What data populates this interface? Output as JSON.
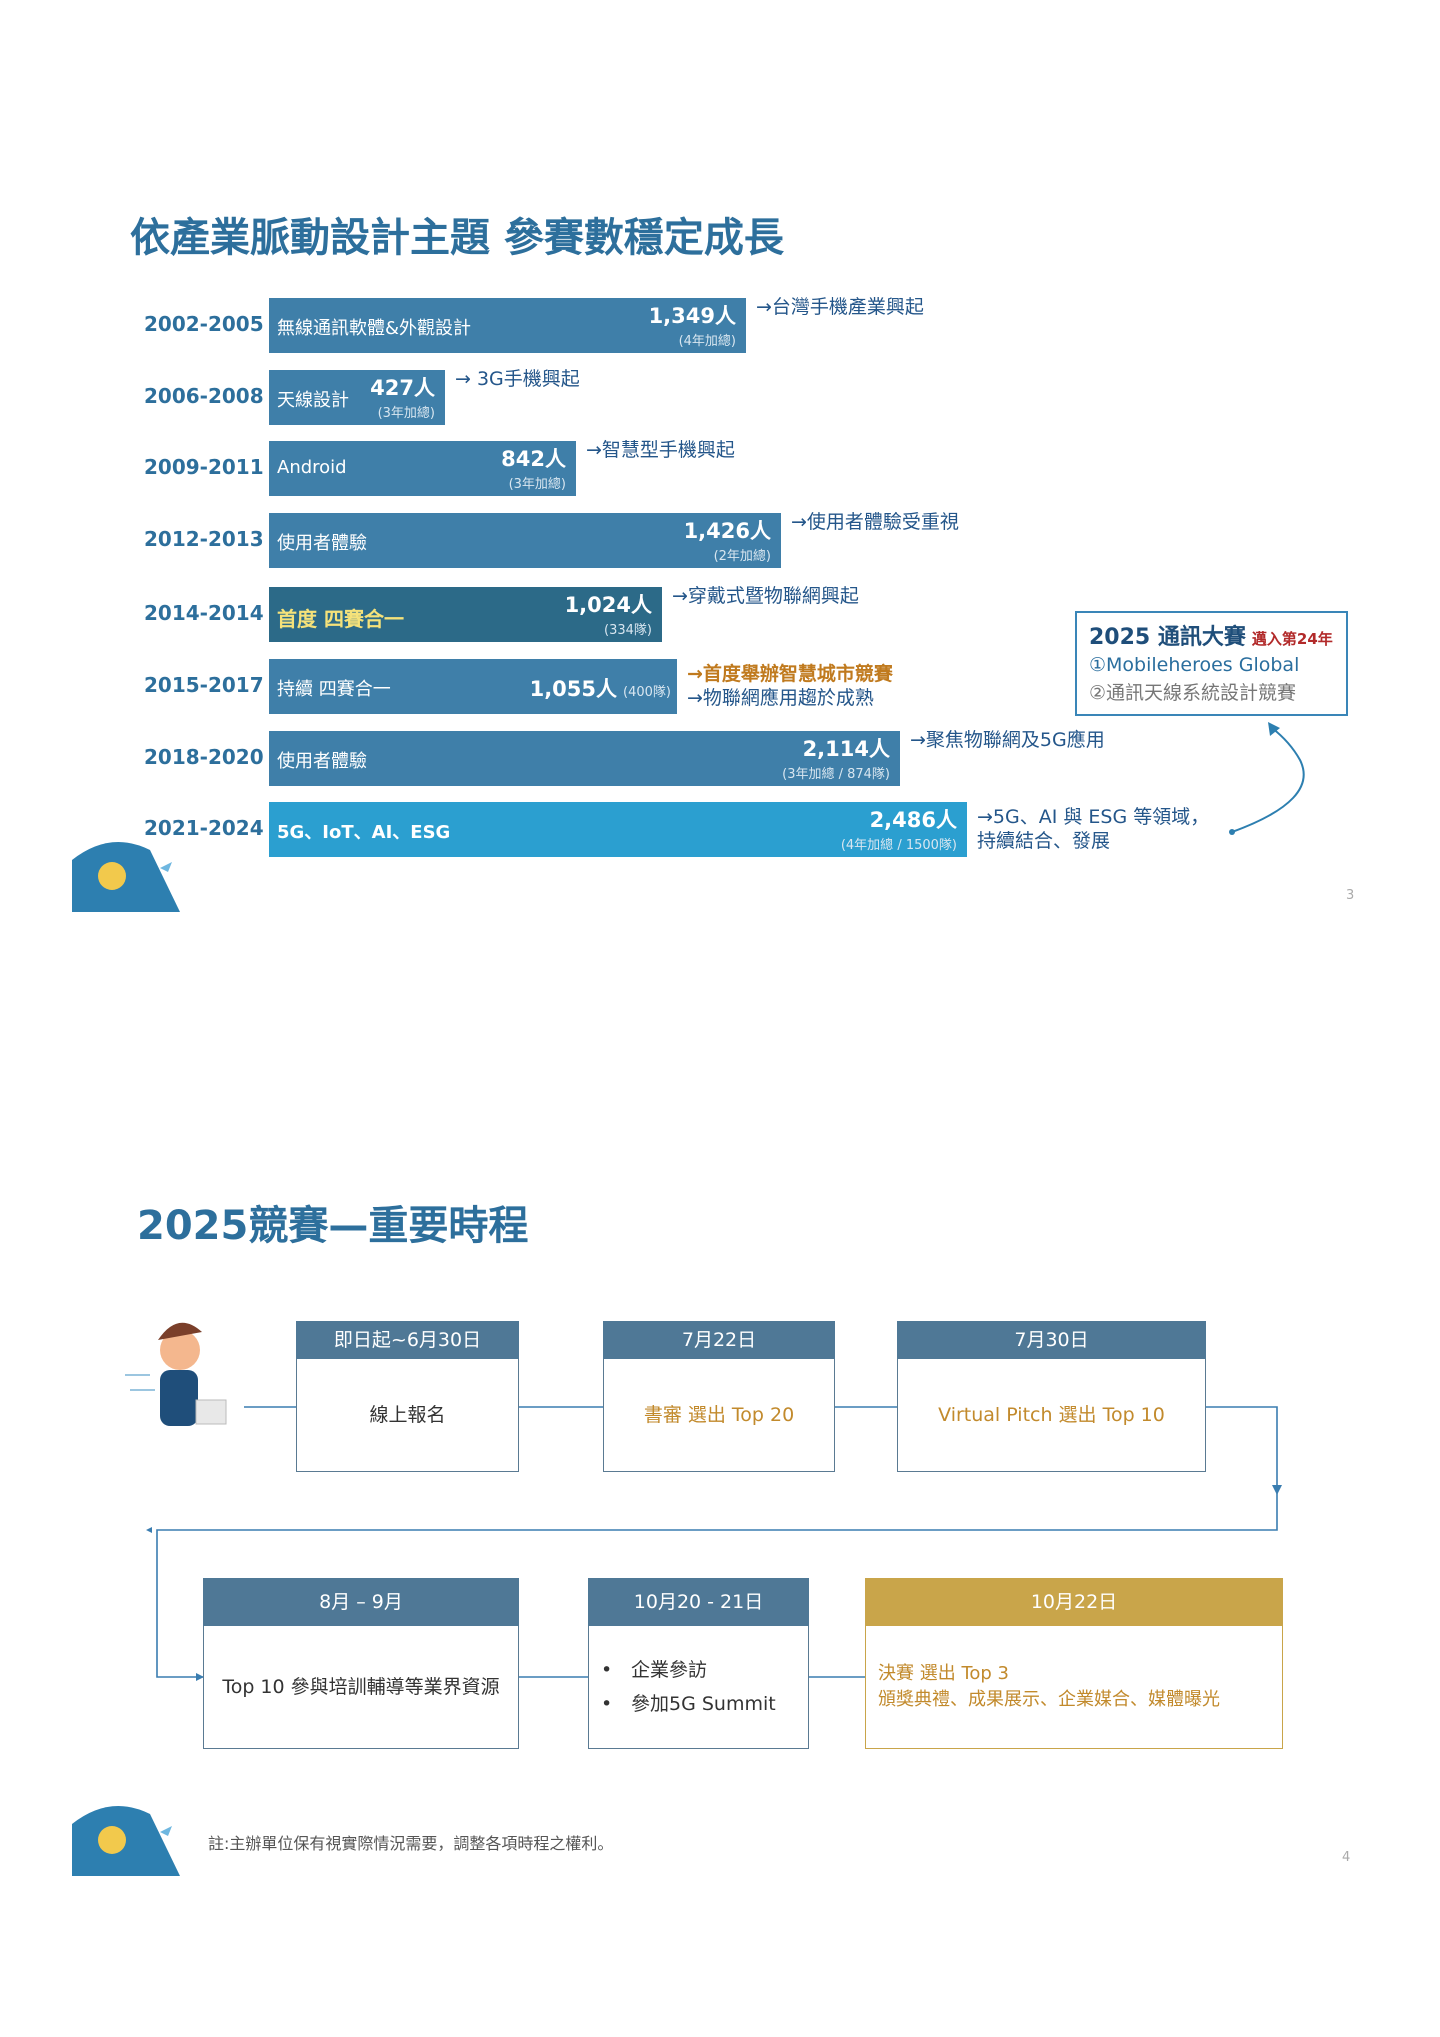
{
  "slide1": {
    "title": "依產業脈動設計主題 參賽數穩定成長",
    "rows": [
      {
        "period": "2002-2005",
        "label": "無線通訊軟體&外觀設計",
        "count": "1,349人",
        "sub": "(4年加總)",
        "trend": [
          "→台灣手機產業興起"
        ]
      },
      {
        "period": "2006-2008",
        "label": "天線設計",
        "count": "427人",
        "sub": "(3年加總)",
        "trend": [
          "→ 3G手機興起"
        ]
      },
      {
        "period": "2009-2011",
        "label": "Android",
        "count": "842人",
        "sub": "(3年加總)",
        "trend": [
          "→智慧型手機興起"
        ]
      },
      {
        "period": "2012-2013",
        "label": "使用者體驗",
        "count": "1,426人",
        "sub": "(2年加總)",
        "trend": [
          "→使用者體驗受重視"
        ]
      },
      {
        "period": "2014-2014",
        "label": "首度 四賽合一",
        "count": "1,024人",
        "sub": "(334隊)",
        "trend": [
          "→穿戴式暨物聯網興起"
        ]
      },
      {
        "period": "2015-2017",
        "label": "持續 四賽合一",
        "count": "1,055人",
        "sub": "(400隊)",
        "trend": [
          "→首度舉辦智慧城市競賽",
          "→物聯網應用趨於成熟"
        ]
      },
      {
        "period": "2018-2020",
        "label": "使用者體驗",
        "count": "2,114人",
        "sub": "(3年加總 / 874隊)",
        "trend": [
          "→聚焦物聯網及5G應用"
        ]
      },
      {
        "period": "2021-2024",
        "label": "5G、IoT、AI、ESG",
        "count": "2,486人",
        "sub": "(4年加總 / 1500隊)",
        "trend": [
          "→5G、AI 與 ESG 等領域，",
          "持續結合、發展"
        ]
      }
    ],
    "box": {
      "heading": "2025 通訊大賽",
      "badge": "邁入第24年",
      "items": [
        "①Mobileheroes Global",
        "②通訊天線系統設計競賽"
      ]
    },
    "page": "3"
  },
  "slide2": {
    "title": "2025競賽—重要時程",
    "steps": [
      {
        "date": "即日起~6月30日",
        "text": [
          "線上報名"
        ]
      },
      {
        "date": "7月22日",
        "text": [
          "書審 選出 Top 20"
        ]
      },
      {
        "date": "7月30日",
        "text": [
          "Virtual Pitch 選出 Top 10"
        ]
      },
      {
        "date": "8月 – 9月",
        "text": [
          "Top 10 參與培訓輔導等業界資源"
        ]
      },
      {
        "date": "10月20 - 21日",
        "text": [
          "企業參訪",
          "參加5G Summit"
        ]
      },
      {
        "date": "10月22日",
        "text": [
          "決賽 選出 Top 3",
          "頒獎典禮、成果展示、企業媒合、媒體曝光"
        ]
      }
    ],
    "note": "註:主辦單位保有視實際情況需要，調整各項時程之權利。",
    "page": "4"
  }
}
